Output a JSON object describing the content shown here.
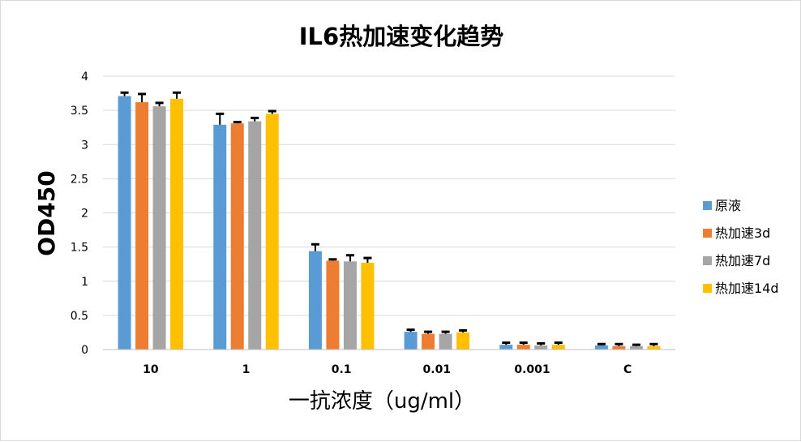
{
  "chart_data": {
    "type": "bar",
    "title": "IL6热加速变化趋势",
    "xlabel": "一抗浓度（ug/ml）",
    "ylabel": "OD450",
    "ylim": [
      0,
      4
    ],
    "yticks": [
      "0",
      "0.5",
      "1",
      "1.5",
      "2",
      "2.5",
      "3",
      "3.5",
      "4"
    ],
    "grid": true,
    "legend_position": "right",
    "categories": [
      "10",
      "1",
      "0.1",
      "0.01",
      "0.001",
      "C"
    ],
    "series": [
      {
        "name": "原液",
        "color": "#5B9BD5",
        "values": [
          3.71,
          3.29,
          1.44,
          0.26,
          0.07,
          0.06
        ],
        "errors": [
          0.05,
          0.16,
          0.1,
          0.03,
          0.03,
          0.02
        ]
      },
      {
        "name": "热加速3d",
        "color": "#ED7D31",
        "values": [
          3.62,
          3.31,
          1.3,
          0.23,
          0.07,
          0.05
        ],
        "errors": [
          0.12,
          0.02,
          0.02,
          0.03,
          0.03,
          0.03
        ]
      },
      {
        "name": "热加速7d",
        "color": "#A5A5A5",
        "values": [
          3.56,
          3.34,
          1.29,
          0.23,
          0.06,
          0.05
        ],
        "errors": [
          0.05,
          0.05,
          0.09,
          0.03,
          0.03,
          0.02
        ]
      },
      {
        "name": "热加速14d",
        "color": "#FFC000",
        "values": [
          3.67,
          3.45,
          1.27,
          0.25,
          0.07,
          0.05
        ],
        "errors": [
          0.09,
          0.04,
          0.07,
          0.03,
          0.03,
          0.03
        ]
      }
    ]
  }
}
